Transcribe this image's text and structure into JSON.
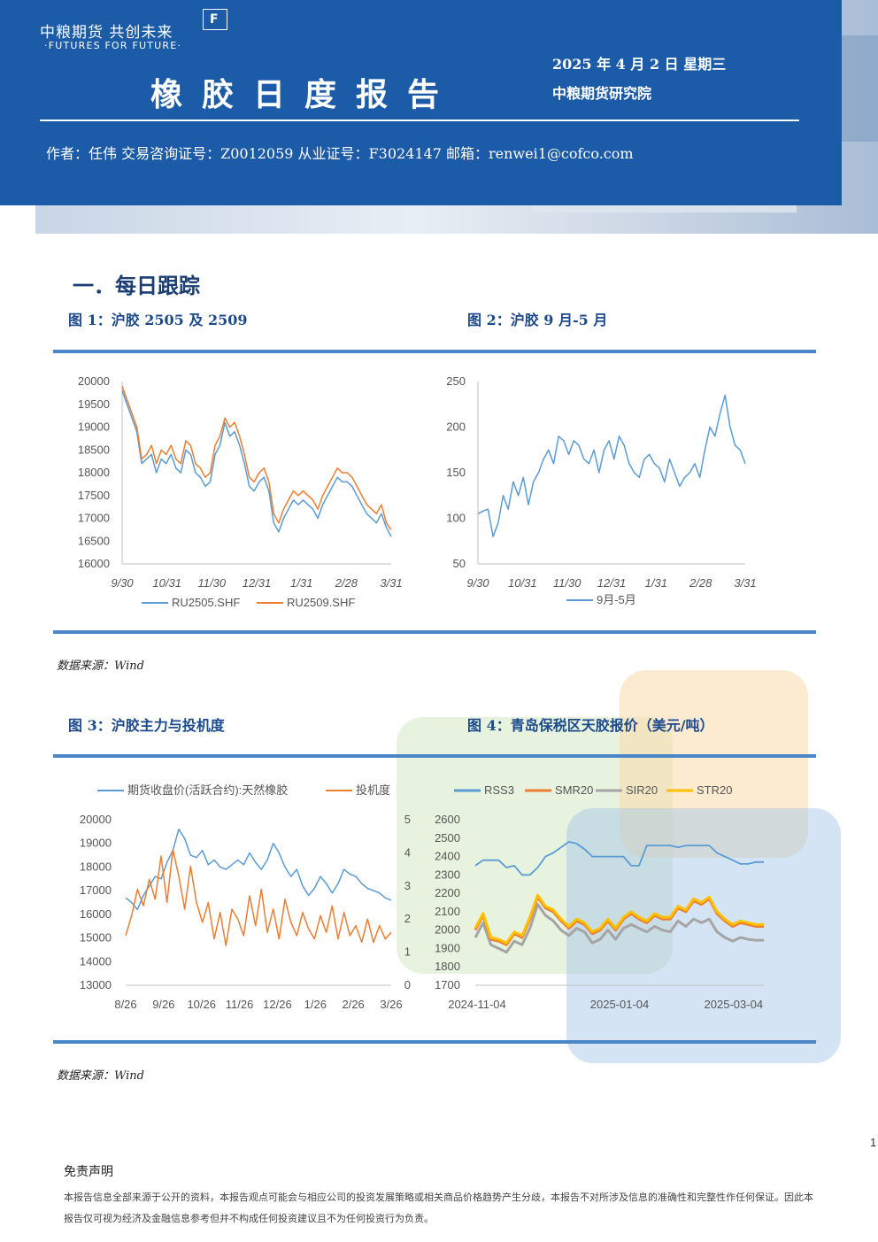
{
  "header": {
    "logo_cn": "中粮期货  共创未来",
    "logo_en": "·FUTURES FOR FUTURE·",
    "logo_mark": "F",
    "title": "橡胶日度报告",
    "date": "2025 年 4 月 2 日  星期三",
    "org": "中粮期货研究院",
    "author_line": "作者：任伟    交易咨询证号：Z0012059    从业证号：F3024147    邮箱：renwei1@cofco.com"
  },
  "section": {
    "title": "一．每日跟踪"
  },
  "figures": {
    "fig1_title": "图 1：沪胶 2505 及 2509",
    "fig2_title": "图 2：沪胶 9 月-5 月",
    "fig3_title": "图 3：沪胶主力与投机度",
    "fig4_title": "图 4：青岛保税区天胶报价（美元/吨）",
    "source1": "数据来源：Wind",
    "source2": "数据来源：Wind"
  },
  "footer": {
    "page_number": "1",
    "disclaimer_title": "免责声明",
    "disclaimer_text": "本报告信息全部来源于公开的资料，本报告观点可能会与相应公司的投资发展策略或相关商品价格趋势产生分歧，本报告不对所涉及信息的准确性和完整性作任何保证。因此本报告仅可视为经济及金融信息参考但并不构成任何投资建议且不为任何投资行为负责。"
  },
  "colors": {
    "banner": "#1c5ba8",
    "blue_series": "#5b9bd5",
    "orange_series": "#ed7d31",
    "gray_series": "#a5a5a5",
    "gold_series": "#ffc000",
    "rule": "#4a86c8"
  },
  "chart_data": [
    {
      "type": "line",
      "x_ticks": [
        "9/30",
        "10/31",
        "11/30",
        "12/31",
        "1/31",
        "2/28",
        "3/31"
      ],
      "ylim": [
        16000,
        20000
      ],
      "y_ticks": [
        16000,
        16500,
        17000,
        17500,
        18000,
        18500,
        19000,
        19500,
        20000
      ],
      "series": [
        {
          "name": "RU2505.SHF",
          "color": "#5b9bd5",
          "values": [
            19800,
            19500,
            19200,
            18900,
            18200,
            18300,
            18400,
            18000,
            18300,
            18200,
            18400,
            18100,
            18000,
            18500,
            18400,
            18000,
            17900,
            17700,
            17800,
            18400,
            18600,
            19100,
            18800,
            18900,
            18600,
            18200,
            17700,
            17600,
            17800,
            17900,
            17600,
            16900,
            16700,
            17000,
            17200,
            17400,
            17300,
            17400,
            17300,
            17200,
            17000,
            17300,
            17500,
            17700,
            17900,
            17800,
            17800,
            17700,
            17500,
            17300,
            17100,
            17000,
            16900,
            17100,
            16800,
            16600
          ]
        },
        {
          "name": "RU2509.SHF",
          "color": "#ed7d31",
          "values": [
            19900,
            19600,
            19300,
            19000,
            18300,
            18400,
            18600,
            18200,
            18500,
            18400,
            18600,
            18300,
            18200,
            18700,
            18600,
            18200,
            18100,
            17900,
            18000,
            18600,
            18800,
            19200,
            19000,
            19100,
            18800,
            18400,
            17900,
            17800,
            18000,
            18100,
            17800,
            17100,
            16900,
            17200,
            17400,
            17600,
            17500,
            17600,
            17500,
            17400,
            17200,
            17500,
            17700,
            17900,
            18100,
            18000,
            18000,
            17900,
            17700,
            17500,
            17300,
            17200,
            17100,
            17300,
            16900,
            16750
          ]
        }
      ]
    },
    {
      "type": "line",
      "x_ticks": [
        "9/30",
        "10/31",
        "11/30",
        "12/31",
        "1/31",
        "2/28",
        "3/31"
      ],
      "ylim": [
        50,
        250
      ],
      "y_ticks": [
        50,
        100,
        150,
        200,
        250
      ],
      "series": [
        {
          "name": "9月-5月",
          "color": "#5b9bd5",
          "values": [
            105,
            108,
            110,
            80,
            95,
            125,
            110,
            140,
            125,
            145,
            115,
            140,
            150,
            165,
            175,
            160,
            190,
            185,
            170,
            185,
            180,
            165,
            160,
            175,
            150,
            175,
            185,
            165,
            190,
            180,
            160,
            150,
            145,
            165,
            170,
            160,
            155,
            140,
            165,
            150,
            135,
            145,
            150,
            160,
            145,
            175,
            200,
            190,
            215,
            235,
            200,
            180,
            175,
            160
          ]
        }
      ]
    },
    {
      "type": "line",
      "x_ticks": [
        "8/26",
        "9/26",
        "10/26",
        "11/26",
        "12/26",
        "1/26",
        "2/26",
        "3/26"
      ],
      "ylim_left": [
        13000,
        20000
      ],
      "y_ticks_left": [
        13000,
        14000,
        15000,
        16000,
        17000,
        18000,
        19000,
        20000
      ],
      "ylim_right": [
        0,
        5
      ],
      "y_ticks_right": [
        0,
        1,
        2,
        3,
        4,
        5
      ],
      "series": [
        {
          "name": "期货收盘价(活跃合约):天然橡胶",
          "color": "#5b9bd5",
          "axis": "left",
          "values": [
            16700,
            16500,
            16200,
            16800,
            17200,
            17600,
            17500,
            18200,
            18700,
            19600,
            19200,
            18500,
            18400,
            18700,
            18100,
            18300,
            18000,
            17900,
            18100,
            18300,
            18100,
            18600,
            18200,
            17900,
            18300,
            19000,
            18600,
            18000,
            17600,
            17900,
            17200,
            16800,
            17100,
            17600,
            17300,
            16900,
            17300,
            17900,
            17700,
            17600,
            17300,
            17100,
            17000,
            16900,
            16700,
            16600
          ]
        },
        {
          "name": "投机度",
          "color": "#ed7d31",
          "axis": "right",
          "values": [
            1.5,
            2.1,
            2.9,
            2.4,
            3.2,
            2.6,
            3.9,
            2.5,
            4.1,
            3.3,
            2.3,
            3.6,
            2.5,
            1.9,
            2.5,
            1.4,
            2.2,
            1.2,
            2.3,
            2.0,
            1.5,
            2.7,
            1.8,
            2.9,
            1.6,
            2.3,
            1.4,
            2.6,
            1.9,
            1.5,
            2.2,
            1.7,
            1.4,
            2.1,
            1.6,
            2.4,
            1.4,
            2.2,
            1.5,
            1.8,
            1.3,
            2.0,
            1.3,
            1.8,
            1.4,
            1.6
          ]
        }
      ]
    },
    {
      "type": "line",
      "x_ticks": [
        "2024-11-04",
        "2025-01-04",
        "2025-03-04"
      ],
      "ylim": [
        1700,
        2600
      ],
      "y_ticks": [
        1700,
        1800,
        1900,
        2000,
        2100,
        2200,
        2300,
        2400,
        2500,
        2600
      ],
      "series": [
        {
          "name": "RSS3",
          "color": "#5b9bd5",
          "values": [
            2350,
            2380,
            2380,
            2380,
            2340,
            2350,
            2300,
            2300,
            2340,
            2400,
            2420,
            2450,
            2480,
            2470,
            2440,
            2400,
            2400,
            2400,
            2400,
            2400,
            2350,
            2350,
            2460,
            2460,
            2460,
            2460,
            2450,
            2460,
            2460,
            2460,
            2460,
            2420,
            2400,
            2380,
            2360,
            2360,
            2370,
            2370
          ]
        },
        {
          "name": "SMR20",
          "color": "#ed7d31",
          "values": [
            2000,
            2080,
            1950,
            1940,
            1920,
            1980,
            1960,
            2060,
            2180,
            2120,
            2100,
            2050,
            2010,
            2050,
            2030,
            1980,
            2000,
            2050,
            2000,
            2060,
            2090,
            2060,
            2040,
            2080,
            2060,
            2060,
            2120,
            2100,
            2160,
            2140,
            2170,
            2090,
            2050,
            2020,
            2040,
            2030,
            2020,
            2020
          ]
        },
        {
          "name": "SIR20",
          "color": "#a5a5a5",
          "values": [
            1960,
            2040,
            1920,
            1900,
            1880,
            1940,
            1920,
            2010,
            2140,
            2080,
            2050,
            2000,
            1970,
            2010,
            1990,
            1930,
            1950,
            2000,
            1950,
            2010,
            2030,
            2010,
            1990,
            2020,
            2000,
            1990,
            2050,
            2020,
            2060,
            2040,
            2060,
            1990,
            1960,
            1940,
            1960,
            1950,
            1945,
            1945
          ]
        },
        {
          "name": "STR20",
          "color": "#ffc000",
          "values": [
            2010,
            2090,
            1960,
            1950,
            1930,
            1990,
            1970,
            2070,
            2190,
            2130,
            2110,
            2060,
            2020,
            2060,
            2040,
            1990,
            2010,
            2060,
            2010,
            2070,
            2100,
            2070,
            2050,
            2090,
            2070,
            2070,
            2130,
            2110,
            2170,
            2150,
            2180,
            2100,
            2060,
            2030,
            2050,
            2040,
            2030,
            2030
          ]
        }
      ]
    }
  ]
}
